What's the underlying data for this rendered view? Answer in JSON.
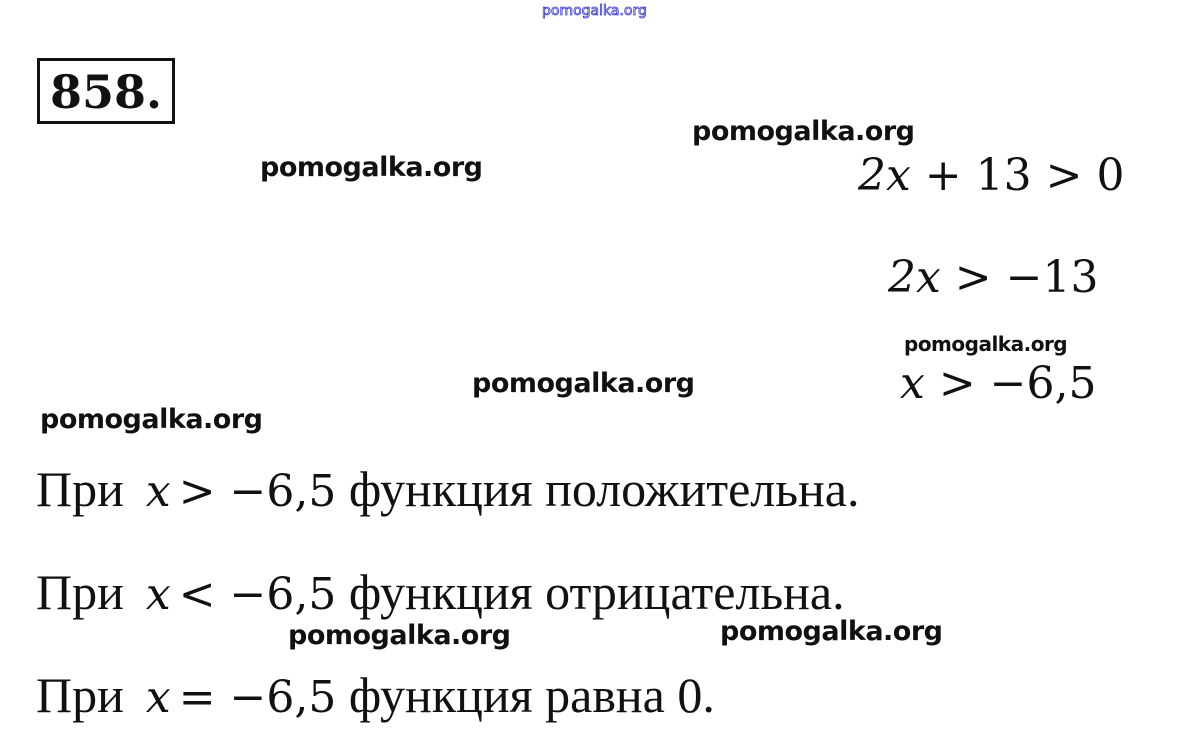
{
  "watermark_top": "pomogalka.org",
  "problem_number": "858.",
  "watermarks": [
    "pomogalka.org",
    "pomogalka.org",
    "pomogalka.org",
    "pomogalka.org",
    "pomogalka.org",
    "pomogalka.org",
    "pomogalka.org"
  ],
  "equations": [
    {
      "var": "2x",
      "rest": " + 13 > 0"
    },
    {
      "var": "2x",
      "rest": " > −13"
    },
    {
      "var": "x",
      "rest": " > −6,5"
    }
  ],
  "lines": [
    {
      "prefix": "При",
      "var": "x",
      "rel": "> −6,5",
      "suffix": " функция положительна."
    },
    {
      "prefix": "При",
      "var": "x",
      "rel": "< −6,5",
      "suffix": " функция отрицательна."
    },
    {
      "prefix": "При",
      "var": "x",
      "rel": "= −6,5",
      "suffix": " функция равна 0."
    }
  ]
}
